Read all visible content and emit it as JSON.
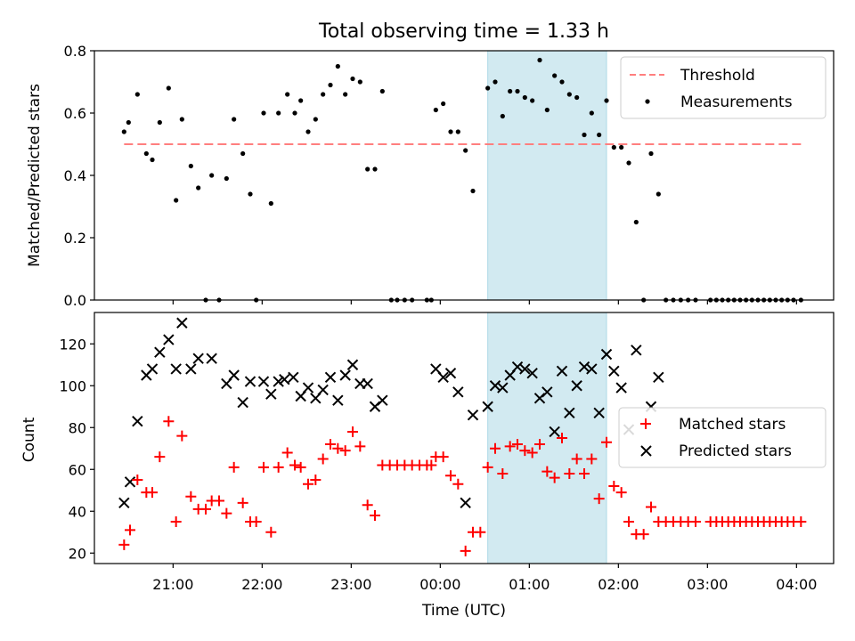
{
  "figure": {
    "title": "Total observing time = 1.33 h"
  },
  "chart_data": [
    {
      "type": "scatter",
      "ylabel": "Matched/Predicted stars",
      "ylim": [
        0,
        0.8
      ],
      "yticks": [
        0.0,
        0.2,
        0.4,
        0.6,
        0.8
      ],
      "ytick_labels": [
        "0.0",
        "0.2",
        "0.4",
        "0.6",
        "0.8"
      ],
      "grid": false,
      "legend_position": "top-right",
      "shaded_interval": [
        "00:32",
        "01:52"
      ],
      "shade_color": "#add8e6",
      "threshold": {
        "name": "Threshold",
        "y": 0.5,
        "x_range": [
          "20:27",
          "04:03"
        ],
        "color": "#ff7f7f",
        "style": "dashed"
      },
      "series": [
        {
          "name": "Measurements",
          "color": "#000000",
          "marker": "dot",
          "points": [
            [
              "20:27",
              0.54
            ],
            [
              "20:30",
              0.57
            ],
            [
              "20:36",
              0.66
            ],
            [
              "20:42",
              0.47
            ],
            [
              "20:46",
              0.45
            ],
            [
              "20:51",
              0.57
            ],
            [
              "20:57",
              0.68
            ],
            [
              "21:02",
              0.32
            ],
            [
              "21:06",
              0.58
            ],
            [
              "21:12",
              0.43
            ],
            [
              "21:17",
              0.36
            ],
            [
              "21:22",
              0.0
            ],
            [
              "21:26",
              0.4
            ],
            [
              "21:31",
              0.0
            ],
            [
              "21:36",
              0.39
            ],
            [
              "21:41",
              0.58
            ],
            [
              "21:47",
              0.47
            ],
            [
              "21:52",
              0.34
            ],
            [
              "21:56",
              0.0
            ],
            [
              "22:01",
              0.6
            ],
            [
              "22:06",
              0.31
            ],
            [
              "22:11",
              0.6
            ],
            [
              "22:17",
              0.66
            ],
            [
              "22:22",
              0.6
            ],
            [
              "22:26",
              0.64
            ],
            [
              "22:31",
              0.54
            ],
            [
              "22:36",
              0.58
            ],
            [
              "22:41",
              0.66
            ],
            [
              "22:46",
              0.69
            ],
            [
              "22:51",
              0.75
            ],
            [
              "22:56",
              0.66
            ],
            [
              "23:01",
              0.71
            ],
            [
              "23:06",
              0.7
            ],
            [
              "23:11",
              0.42
            ],
            [
              "23:16",
              0.42
            ],
            [
              "23:21",
              0.67
            ],
            [
              "23:27",
              0.0
            ],
            [
              "23:31",
              0.0
            ],
            [
              "23:36",
              0.0
            ],
            [
              "23:41",
              0.0
            ],
            [
              "23:51",
              0.0
            ],
            [
              "23:54",
              0.0
            ],
            [
              "23:57",
              0.61
            ],
            [
              "00:02",
              0.63
            ],
            [
              "00:07",
              0.54
            ],
            [
              "00:12",
              0.54
            ],
            [
              "00:17",
              0.48
            ],
            [
              "00:22",
              0.35
            ],
            [
              "00:32",
              0.68
            ],
            [
              "00:37",
              0.7
            ],
            [
              "00:42",
              0.59
            ],
            [
              "00:47",
              0.67
            ],
            [
              "00:52",
              0.67
            ],
            [
              "00:57",
              0.65
            ],
            [
              "01:02",
              0.64
            ],
            [
              "01:07",
              0.77
            ],
            [
              "01:12",
              0.61
            ],
            [
              "01:17",
              0.72
            ],
            [
              "01:22",
              0.7
            ],
            [
              "01:27",
              0.66
            ],
            [
              "01:32",
              0.65
            ],
            [
              "01:37",
              0.53
            ],
            [
              "01:42",
              0.6
            ],
            [
              "01:47",
              0.53
            ],
            [
              "01:52",
              0.64
            ],
            [
              "01:57",
              0.49
            ],
            [
              "02:02",
              0.49
            ],
            [
              "02:07",
              0.44
            ],
            [
              "02:12",
              0.25
            ],
            [
              "02:17",
              0.0
            ],
            [
              "02:22",
              0.47
            ],
            [
              "02:27",
              0.34
            ],
            [
              "02:32",
              0.0
            ],
            [
              "02:37",
              0.0
            ],
            [
              "02:42",
              0.0
            ],
            [
              "02:47",
              0.0
            ],
            [
              "02:52",
              0.0
            ],
            [
              "03:02",
              0.0
            ],
            [
              "03:06",
              0.0
            ],
            [
              "03:10",
              0.0
            ],
            [
              "03:14",
              0.0
            ],
            [
              "03:18",
              0.0
            ],
            [
              "03:22",
              0.0
            ],
            [
              "03:26",
              0.0
            ],
            [
              "03:30",
              0.0
            ],
            [
              "03:34",
              0.0
            ],
            [
              "03:38",
              0.0
            ],
            [
              "03:42",
              0.0
            ],
            [
              "03:46",
              0.0
            ],
            [
              "03:50",
              0.0
            ],
            [
              "03:54",
              0.0
            ],
            [
              "03:58",
              0.0
            ],
            [
              "04:03",
              0.0
            ]
          ]
        }
      ]
    },
    {
      "type": "scatter",
      "xlabel": "Time (UTC)",
      "ylabel": "Count",
      "xlim": [
        "20:07",
        "04:25"
      ],
      "xticks": [
        "21:00",
        "22:00",
        "23:00",
        "00:00",
        "01:00",
        "02:00",
        "03:00",
        "04:00"
      ],
      "ylim": [
        15,
        135
      ],
      "yticks": [
        20,
        40,
        60,
        80,
        100,
        120
      ],
      "ytick_labels": [
        "20",
        "40",
        "60",
        "80",
        "100",
        "120"
      ],
      "grid": false,
      "legend_position": "center-right",
      "shaded_interval": [
        "00:32",
        "01:52"
      ],
      "shade_color": "#add8e6",
      "series": [
        {
          "name": "Matched stars",
          "color": "#ff0000",
          "marker": "plus",
          "points": [
            [
              "20:27",
              24
            ],
            [
              "20:31",
              31
            ],
            [
              "20:36",
              55
            ],
            [
              "20:42",
              49
            ],
            [
              "20:46",
              49
            ],
            [
              "20:51",
              66
            ],
            [
              "20:57",
              83
            ],
            [
              "21:02",
              35
            ],
            [
              "21:06",
              76
            ],
            [
              "21:12",
              47
            ],
            [
              "21:17",
              41
            ],
            [
              "21:22",
              41
            ],
            [
              "21:26",
              45
            ],
            [
              "21:31",
              45
            ],
            [
              "21:36",
              39
            ],
            [
              "21:41",
              61
            ],
            [
              "21:47",
              44
            ],
            [
              "21:52",
              35
            ],
            [
              "21:56",
              35
            ],
            [
              "22:01",
              61
            ],
            [
              "22:06",
              30
            ],
            [
              "22:11",
              61
            ],
            [
              "22:17",
              68
            ],
            [
              "22:22",
              62
            ],
            [
              "22:26",
              61
            ],
            [
              "22:31",
              53
            ],
            [
              "22:36",
              55
            ],
            [
              "22:41",
              65
            ],
            [
              "22:46",
              72
            ],
            [
              "22:51",
              70
            ],
            [
              "22:56",
              69
            ],
            [
              "23:01",
              78
            ],
            [
              "23:06",
              71
            ],
            [
              "23:11",
              43
            ],
            [
              "23:16",
              38
            ],
            [
              "23:21",
              62
            ],
            [
              "23:26",
              62
            ],
            [
              "23:31",
              62
            ],
            [
              "23:36",
              62
            ],
            [
              "23:41",
              62
            ],
            [
              "23:46",
              62
            ],
            [
              "23:51",
              62
            ],
            [
              "23:54",
              62
            ],
            [
              "23:57",
              66
            ],
            [
              "00:02",
              66
            ],
            [
              "00:07",
              57
            ],
            [
              "00:12",
              53
            ],
            [
              "00:17",
              21
            ],
            [
              "00:22",
              30
            ],
            [
              "00:27",
              30
            ],
            [
              "00:32",
              61
            ],
            [
              "00:37",
              70
            ],
            [
              "00:42",
              58
            ],
            [
              "00:47",
              71
            ],
            [
              "00:52",
              72
            ],
            [
              "00:57",
              69
            ],
            [
              "01:02",
              68
            ],
            [
              "01:07",
              72
            ],
            [
              "01:12",
              59
            ],
            [
              "01:17",
              56
            ],
            [
              "01:22",
              75
            ],
            [
              "01:27",
              58
            ],
            [
              "01:32",
              65
            ],
            [
              "01:37",
              58
            ],
            [
              "01:42",
              65
            ],
            [
              "01:47",
              46
            ],
            [
              "01:52",
              73
            ],
            [
              "01:57",
              52
            ],
            [
              "02:02",
              49
            ],
            [
              "02:07",
              35
            ],
            [
              "02:12",
              29
            ],
            [
              "02:17",
              29
            ],
            [
              "02:22",
              42
            ],
            [
              "02:27",
              35
            ],
            [
              "02:32",
              35
            ],
            [
              "02:37",
              35
            ],
            [
              "02:42",
              35
            ],
            [
              "02:47",
              35
            ],
            [
              "02:52",
              35
            ],
            [
              "03:02",
              35
            ],
            [
              "03:06",
              35
            ],
            [
              "03:10",
              35
            ],
            [
              "03:14",
              35
            ],
            [
              "03:18",
              35
            ],
            [
              "03:22",
              35
            ],
            [
              "03:26",
              35
            ],
            [
              "03:30",
              35
            ],
            [
              "03:34",
              35
            ],
            [
              "03:38",
              35
            ],
            [
              "03:42",
              35
            ],
            [
              "03:46",
              35
            ],
            [
              "03:50",
              35
            ],
            [
              "03:54",
              35
            ],
            [
              "03:58",
              35
            ],
            [
              "04:03",
              35
            ]
          ]
        },
        {
          "name": "Predicted stars",
          "color": "#000000",
          "marker": "x",
          "points": [
            [
              "20:27",
              44
            ],
            [
              "20:31",
              54
            ],
            [
              "20:36",
              83
            ],
            [
              "20:42",
              105
            ],
            [
              "20:46",
              108
            ],
            [
              "20:51",
              116
            ],
            [
              "20:57",
              122
            ],
            [
              "21:02",
              108
            ],
            [
              "21:06",
              130
            ],
            [
              "21:12",
              108
            ],
            [
              "21:17",
              113
            ],
            [
              "21:26",
              113
            ],
            [
              "21:36",
              101
            ],
            [
              "21:41",
              105
            ],
            [
              "21:47",
              92
            ],
            [
              "21:52",
              102
            ],
            [
              "22:01",
              102
            ],
            [
              "22:06",
              96
            ],
            [
              "22:11",
              102
            ],
            [
              "22:15",
              103
            ],
            [
              "22:21",
              104
            ],
            [
              "22:26",
              95
            ],
            [
              "22:31",
              99
            ],
            [
              "22:36",
              94
            ],
            [
              "22:41",
              98
            ],
            [
              "22:46",
              104
            ],
            [
              "22:51",
              93
            ],
            [
              "22:56",
              105
            ],
            [
              "23:01",
              110
            ],
            [
              "23:06",
              101
            ],
            [
              "23:11",
              101
            ],
            [
              "23:16",
              90
            ],
            [
              "23:21",
              93
            ],
            [
              "23:57",
              108
            ],
            [
              "00:02",
              104
            ],
            [
              "00:07",
              106
            ],
            [
              "00:12",
              97
            ],
            [
              "00:17",
              44
            ],
            [
              "00:22",
              86
            ],
            [
              "00:32",
              90
            ],
            [
              "00:37",
              100
            ],
            [
              "00:42",
              99
            ],
            [
              "00:47",
              105
            ],
            [
              "00:52",
              109
            ],
            [
              "00:57",
              108
            ],
            [
              "01:02",
              106
            ],
            [
              "01:07",
              94
            ],
            [
              "01:12",
              97
            ],
            [
              "01:17",
              78
            ],
            [
              "01:22",
              107
            ],
            [
              "01:27",
              87
            ],
            [
              "01:32",
              100
            ],
            [
              "01:37",
              109
            ],
            [
              "01:42",
              108
            ],
            [
              "01:47",
              87
            ],
            [
              "01:52",
              115
            ],
            [
              "01:57",
              107
            ],
            [
              "02:02",
              99
            ],
            [
              "02:07",
              79
            ],
            [
              "02:12",
              117
            ],
            [
              "02:22",
              90
            ],
            [
              "02:27",
              104
            ]
          ]
        }
      ]
    }
  ]
}
